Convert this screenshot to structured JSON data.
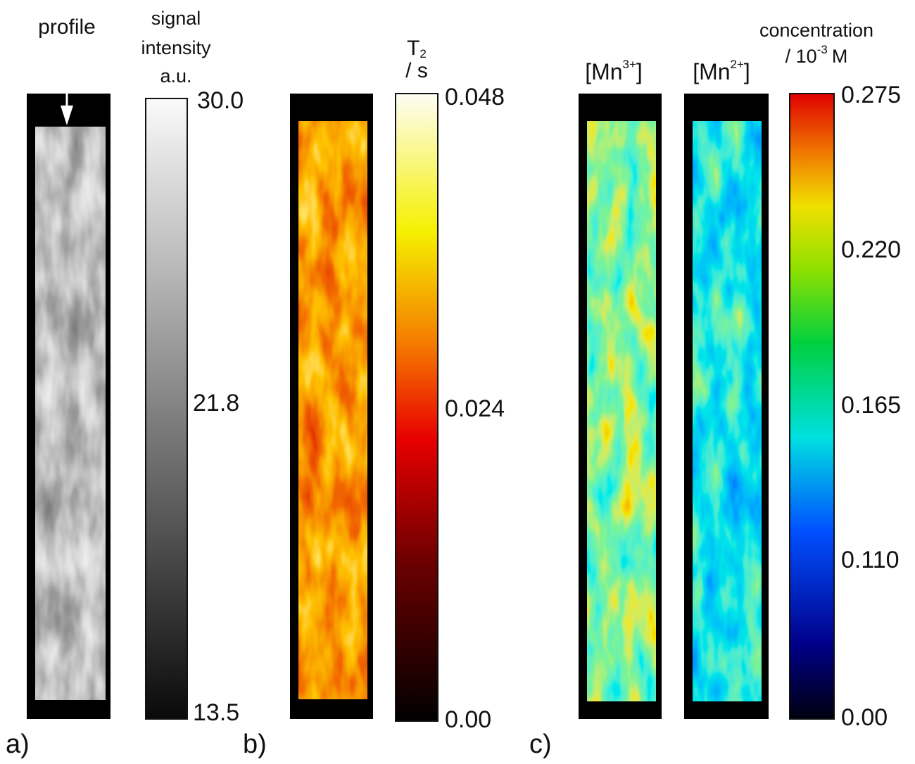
{
  "panels": [
    {
      "label": "a)",
      "annotation": "profile",
      "colorbar": {
        "title": [
          "signal",
          "intensity",
          "a.u."
        ],
        "ticks": [
          "30.0",
          "21.8",
          "13.5"
        ]
      }
    },
    {
      "label": "b)",
      "colorbar": {
        "title": {
          "symbol": "T",
          "sub": "2",
          "unit": "/ s"
        },
        "ticks": [
          "0.048",
          "0.024",
          "0.00"
        ]
      }
    },
    {
      "label": "c)",
      "maps": [
        {
          "open": "[Mn",
          "sup": "3+",
          "close": "]"
        },
        {
          "open": "[Mn",
          "sup": "2+",
          "close": "]"
        }
      ],
      "colorbar": {
        "title": {
          "line1": "concentration",
          "prefix": "/ 10",
          "sup": "-3",
          "unit": "M"
        },
        "ticks": [
          "0.275",
          "0.220",
          "0.165",
          "0.110",
          "0.00"
        ]
      }
    }
  ]
}
